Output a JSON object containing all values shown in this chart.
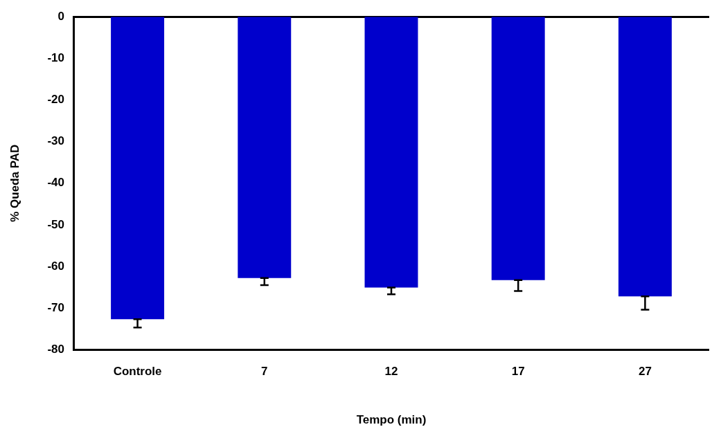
{
  "chart_data": {
    "type": "bar",
    "xlabel": "Tempo (min)",
    "ylabel": "% Queda PAD",
    "categories": [
      "Controle",
      "7",
      "12",
      "17",
      "27"
    ],
    "values": [
      -72.7,
      -62.8,
      -65.1,
      -63.3,
      -67.2
    ],
    "errors": [
      [
        -74.7,
        -72.7
      ],
      [
        -64.5,
        -62.8
      ],
      [
        -66.7,
        -65.1
      ],
      [
        -65.9,
        -63.3
      ],
      [
        -70.4,
        -67.2
      ]
    ],
    "color": "#0000cc",
    "ylim": [
      -80,
      0
    ],
    "yticks": [
      0,
      -10,
      -20,
      -30,
      -40,
      -50,
      -60,
      -70,
      -80
    ],
    "grid": false,
    "legend": false
  }
}
